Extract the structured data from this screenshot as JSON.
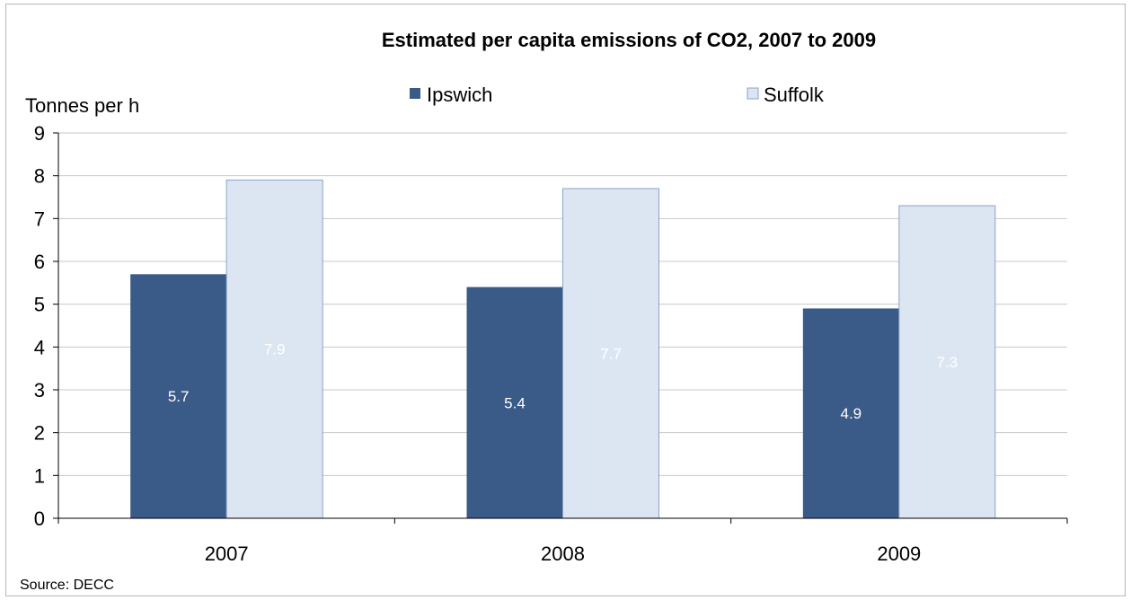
{
  "chart_data": {
    "type": "bar",
    "title": "Estimated per capita emissions of CO2, 2007 to 2009",
    "ylabel": "Tonnes per head",
    "ylabel_visible": "Tonnes per h",
    "xlabel": "",
    "categories": [
      "2007",
      "2008",
      "2009"
    ],
    "series": [
      {
        "name": "Ipswich",
        "values": [
          5.7,
          5.4,
          4.9
        ],
        "labels": [
          "5.7",
          "5.4",
          "4.9"
        ],
        "color": "#3a5a87"
      },
      {
        "name": "Suffolk",
        "values": [
          7.9,
          7.7,
          7.3
        ],
        "labels": [
          "7.9",
          "7.7",
          "7.3"
        ],
        "color": "#dce6f2"
      }
    ],
    "ylim": [
      0,
      9
    ],
    "yticks": [
      "0",
      "1",
      "2",
      "3",
      "4",
      "5",
      "6",
      "7",
      "8",
      "9"
    ],
    "grid": true,
    "legend_position": "top",
    "source": "Source: DECC"
  }
}
